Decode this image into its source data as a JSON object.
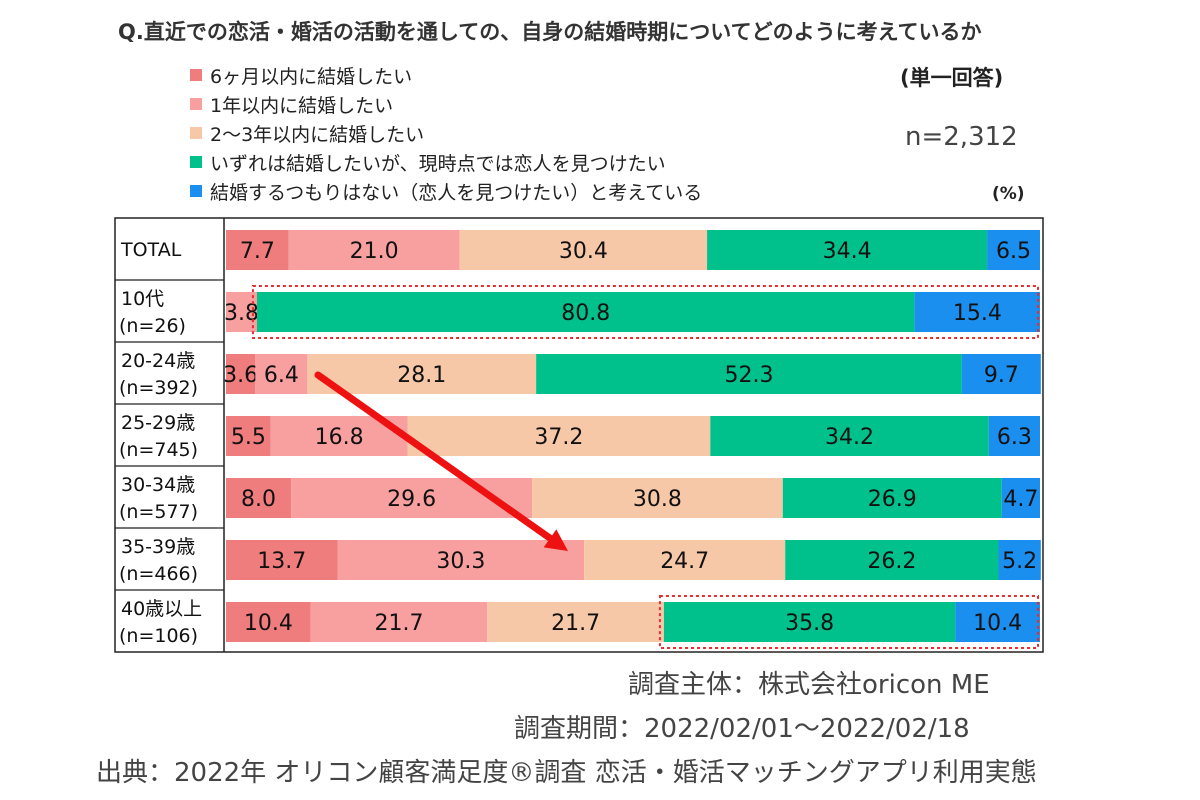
{
  "title": "Q.直近での恋活・婚活の活動を通しての、自身の結婚時期についてどのように考えているか",
  "answer_type": "(単一回答)",
  "sample_size": "n=2,312",
  "unit": "(%)",
  "legend": [
    {
      "label": "6ヶ月以内に結婚したい",
      "color": "#f07d7d"
    },
    {
      "label": "1年以内に結婚したい",
      "color": "#f8a0a0"
    },
    {
      "label": "2〜3年以内に結婚したい",
      "color": "#f7c8a8"
    },
    {
      "label": "いずれは結婚したいが、現時点では恋人を見つけたい",
      "color": "#00c08b"
    },
    {
      "label": "結婚するつもりはない（恋人を見つけたい）と考えている",
      "color": "#1a8ff0"
    }
  ],
  "chart_data": {
    "type": "bar",
    "orientation": "horizontal",
    "stacked": true,
    "title": "Q.直近での恋活・婚活の活動を通しての、自身の結婚時期についてどのように考えているか",
    "xlabel": "",
    "ylabel": "",
    "xlim": [
      0,
      100
    ],
    "categories": [
      {
        "label": "TOTAL",
        "n": ""
      },
      {
        "label": "10代",
        "n": "(n=26)"
      },
      {
        "label": "20-24歳",
        "n": "(n=392)"
      },
      {
        "label": "25-29歳",
        "n": "(n=745)"
      },
      {
        "label": "30-34歳",
        "n": "(n=577)"
      },
      {
        "label": "35-39歳",
        "n": "(n=466)"
      },
      {
        "label": "40歳以上",
        "n": "(n=106)"
      }
    ],
    "series": [
      {
        "name": "6ヶ月以内に結婚したい",
        "color": "#f07d7d",
        "values": [
          7.7,
          0.0,
          3.6,
          5.5,
          8.0,
          13.7,
          10.4
        ]
      },
      {
        "name": "1年以内に結婚したい",
        "color": "#f8a0a0",
        "values": [
          21.0,
          3.8,
          6.4,
          16.8,
          29.6,
          30.3,
          21.7
        ]
      },
      {
        "name": "2〜3年以内に結婚したい",
        "color": "#f7c8a8",
        "values": [
          30.4,
          0.0,
          28.1,
          37.2,
          30.8,
          24.7,
          21.7
        ]
      },
      {
        "name": "いずれは結婚したいが、現時点では恋人を見つけたい",
        "color": "#00c08b",
        "values": [
          34.4,
          80.8,
          52.3,
          34.2,
          26.9,
          26.2,
          35.8
        ]
      },
      {
        "name": "結婚するつもりはない（恋人を見つけたい）と考えている",
        "color": "#1a8ff0",
        "values": [
          6.5,
          15.4,
          9.7,
          6.3,
          4.7,
          5.2,
          10.4
        ]
      }
    ],
    "data_labels": [
      [
        "7.7",
        "21.0",
        "30.4",
        "34.4",
        "6.5"
      ],
      [
        "",
        "3.8",
        "",
        "80.8",
        "15.4"
      ],
      [
        "3.6",
        "6.4",
        "28.1",
        "52.3",
        "9.7"
      ],
      [
        "5.5",
        "16.8",
        "37.2",
        "34.2",
        "6.3"
      ],
      [
        "8.0",
        "29.6",
        "30.8",
        "26.9",
        "4.7"
      ],
      [
        "13.7",
        "30.3",
        "24.7",
        "26.2",
        "5.2"
      ],
      [
        "10.4",
        "21.7",
        "21.7",
        "35.8",
        "10.4"
      ]
    ],
    "highlights": [
      {
        "category": "10代",
        "series_from": 3,
        "series_to": 4,
        "style": "red dotted box"
      },
      {
        "category": "40歳以上",
        "series_from": 3,
        "series_to": 4,
        "style": "red dotted box"
      }
    ],
    "arrow": {
      "from_category": "20-24歳",
      "to_category": "35-39歳",
      "color": "#ee1111"
    }
  },
  "footer": {
    "org": "調査主体：株式会社oricon ME",
    "period": "調査期間：2022/02/01〜2022/02/18",
    "source": "出典：2022年 オリコン顧客満足度®調査 恋活・婚活マッチングアプリ利用実態"
  }
}
